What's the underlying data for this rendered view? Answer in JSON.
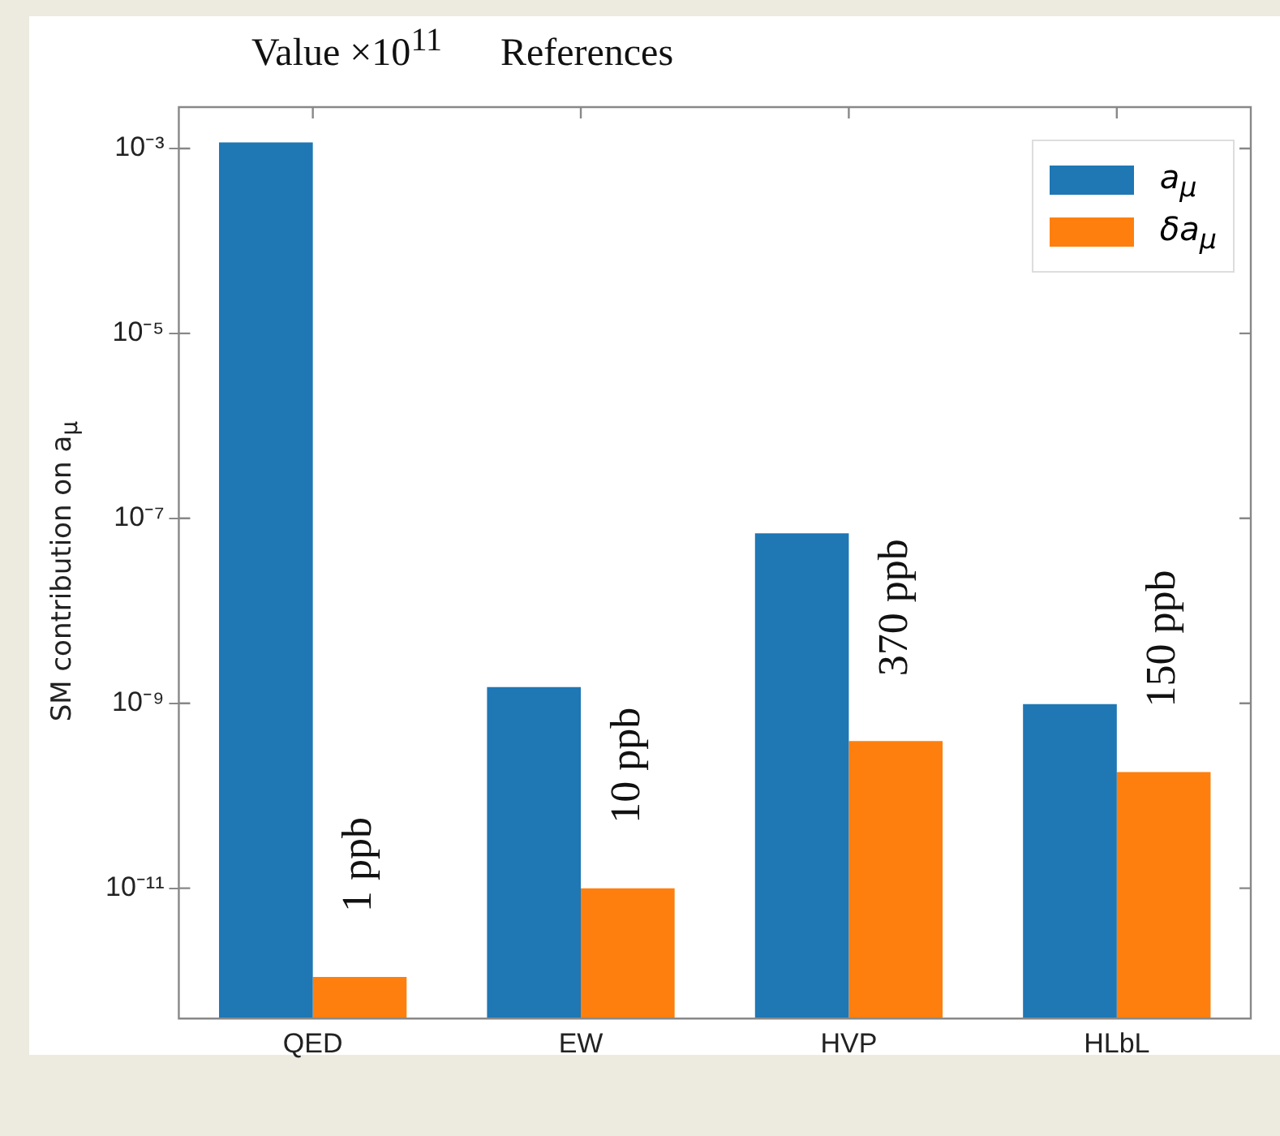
{
  "chart_data": {
    "type": "bar",
    "categories": [
      "QED",
      "EW",
      "HVP",
      "HLbL"
    ],
    "series": [
      {
        "name": "a$_{μ}$",
        "color": "#1f77b4",
        "values": [
          0.00116,
          1.5e-09,
          6.9e-08,
          9.8e-10
        ]
      },
      {
        "name": "δa$_{μ}$",
        "color": "#ff7f0e",
        "values": [
          1.1e-12,
          1e-11,
          3.9e-10,
          1.8e-10
        ]
      }
    ],
    "ylabel": "SM contribution on a$_{μ}$",
    "log": true,
    "ylim": [
      3.9e-13,
      0.0028
    ],
    "yticks": [
      {
        "value": 1e-11,
        "label": "10⁻¹¹"
      },
      {
        "value": 1e-09,
        "label": "10⁻⁹"
      },
      {
        "value": 1e-07,
        "label": "10⁻⁷"
      },
      {
        "value": 1e-05,
        "label": "10⁻⁵"
      },
      {
        "value": 0.001,
        "label": "10⁻³"
      }
    ],
    "grid": false,
    "legend": "top right",
    "annotations": [
      "Value ×10$^{11}$",
      "References",
      {
        "text": "1 ppb",
        "x": "QED",
        "y": 1.1e-12
      },
      {
        "text": "10 ppb",
        "x": "EW",
        "y": 1e-11
      },
      {
        "text": "370 ppb",
        "x": "HVP",
        "y": 3.9e-10
      },
      {
        "text": "150 ppb",
        "x": "HLbL",
        "y": 1.8e-10
      }
    ]
  }
}
